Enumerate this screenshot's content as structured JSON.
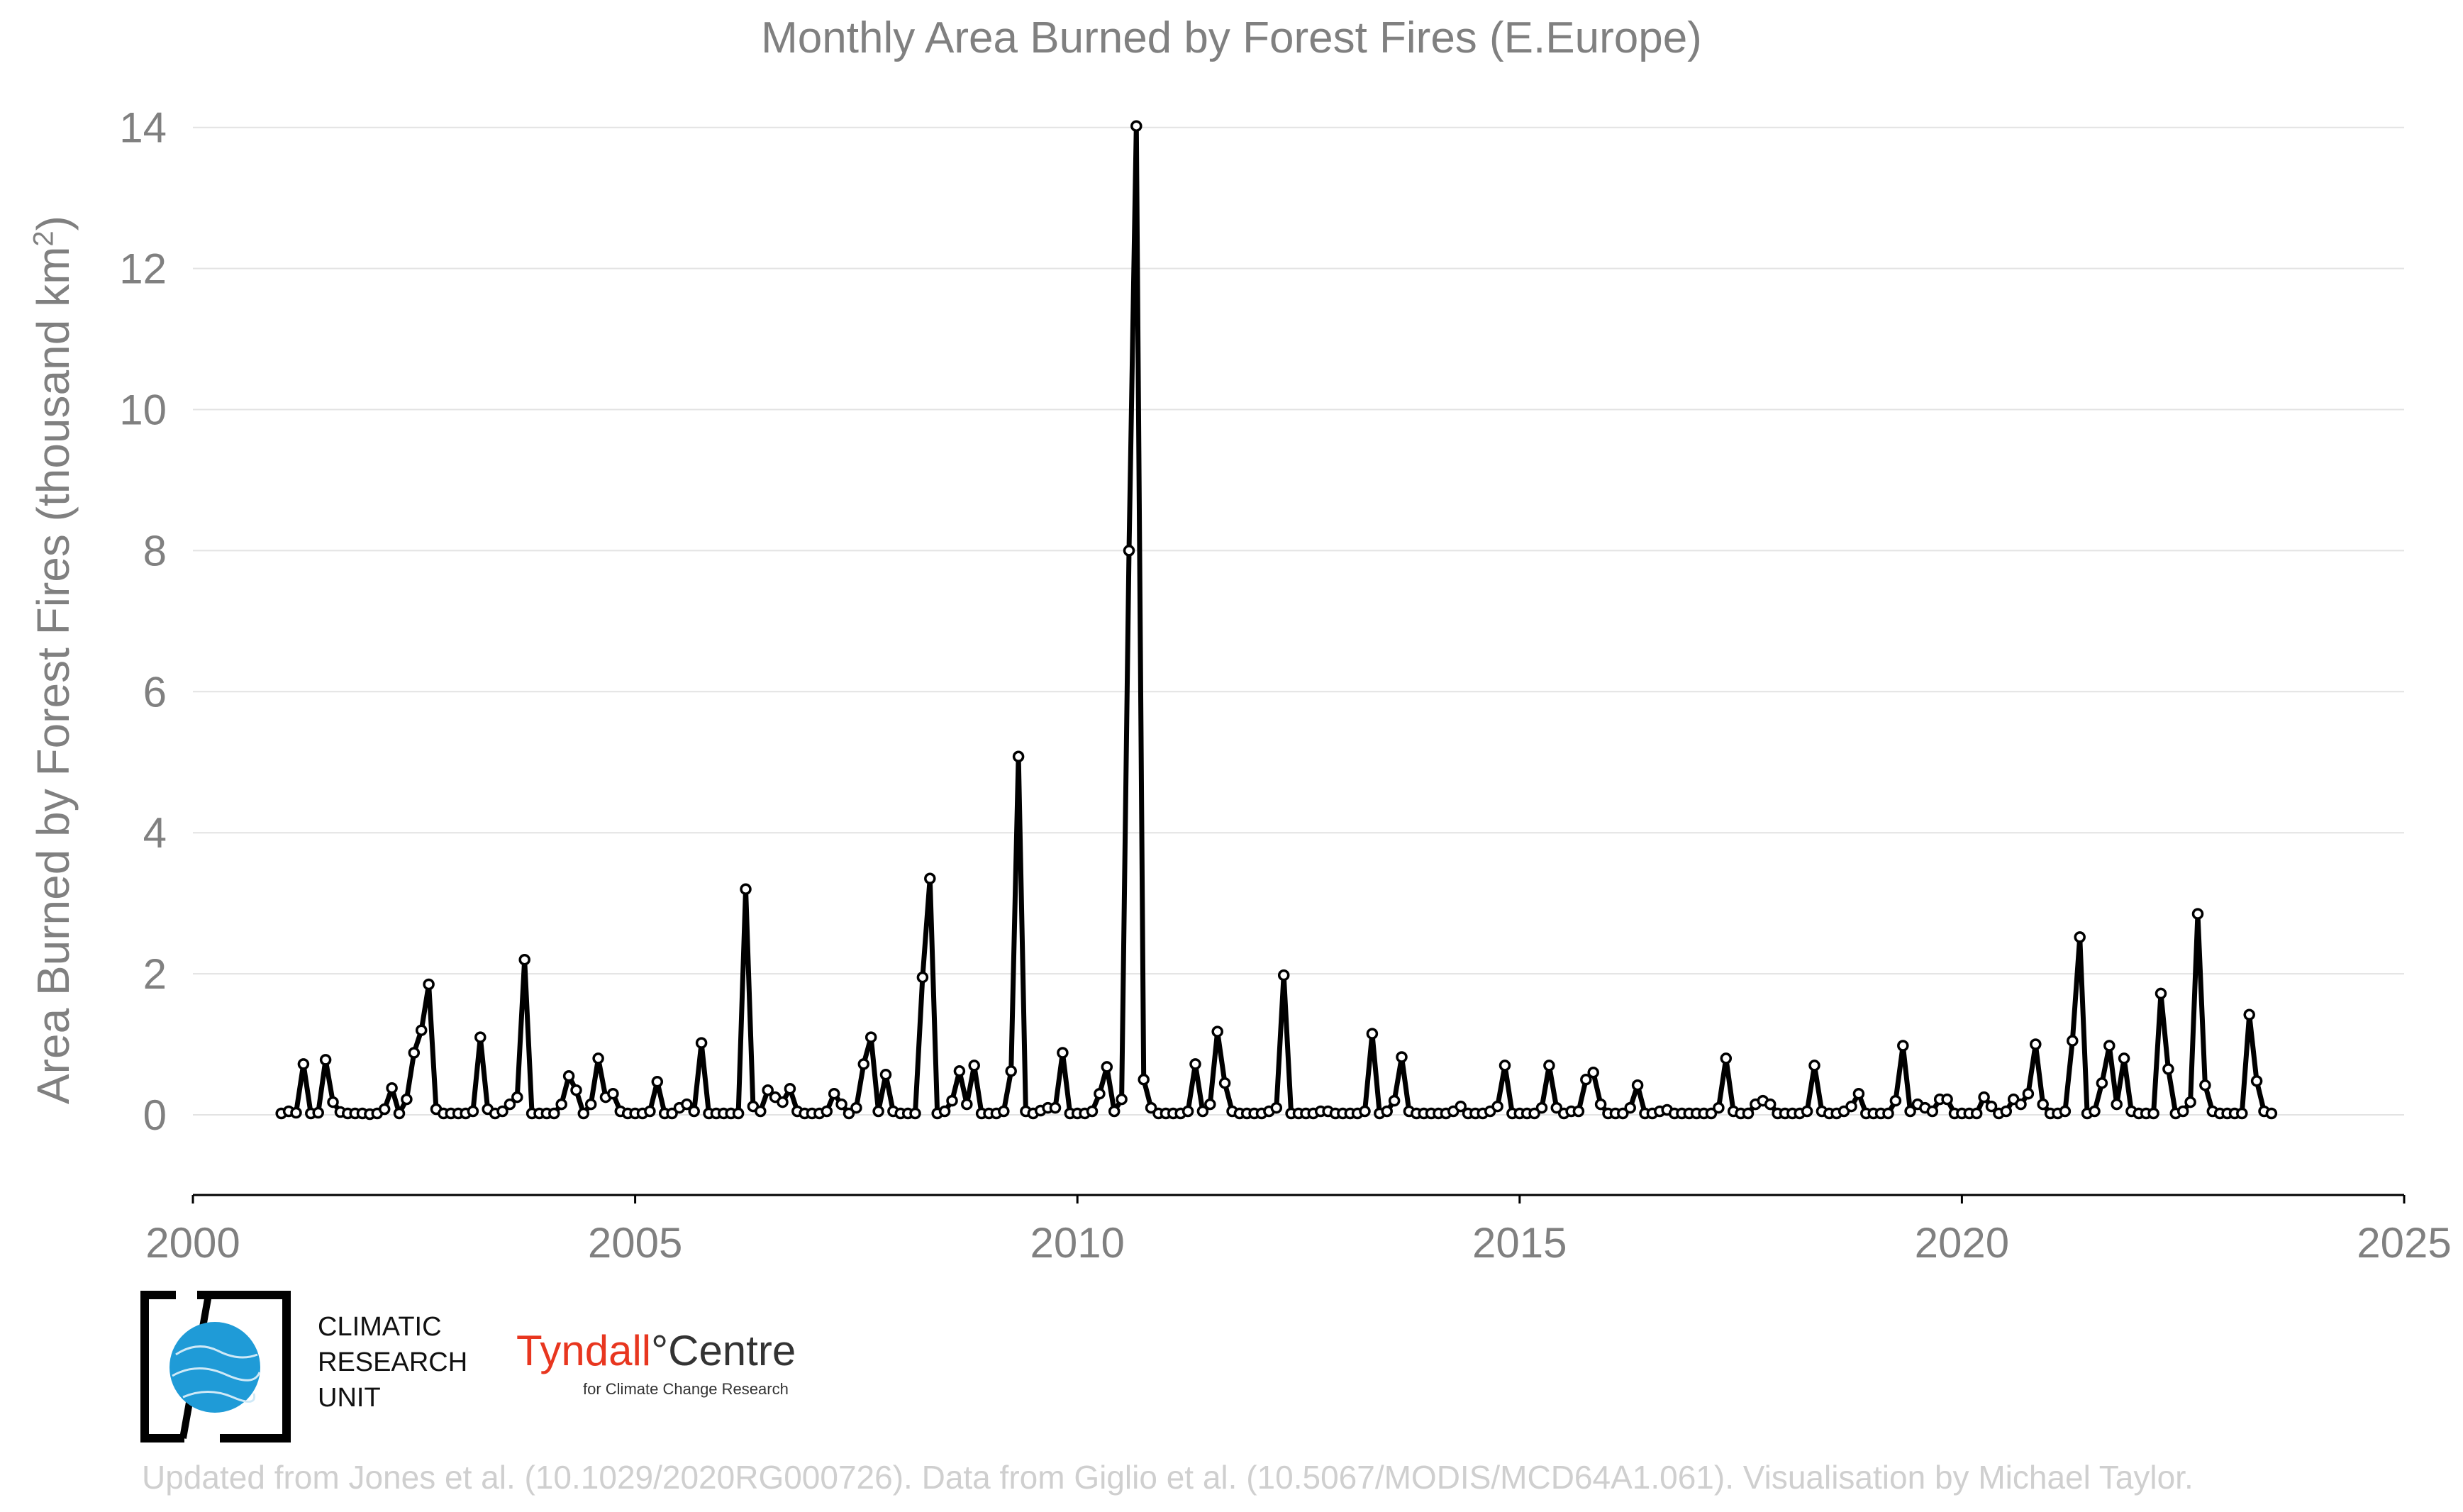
{
  "chart_data": {
    "type": "line",
    "title": "Monthly Area Burned by Forest Fires (E.Europe)",
    "ylabel_main": "Area Burned by Forest Fires (thousand km",
    "ylabel_sup": "2",
    "ylabel_close": ")",
    "xlabel": "",
    "xlim": [
      2000,
      2025
    ],
    "ylim": [
      -1.1,
      14.2
    ],
    "x_ticks": [
      2000,
      2005,
      2010,
      2015,
      2020,
      2025
    ],
    "y_ticks": [
      0,
      2,
      4,
      6,
      8,
      10,
      12,
      14
    ],
    "grid": "horizontal",
    "line_color": "#000000",
    "marker_fill": "#ffffff",
    "x_start": "2001-01",
    "series": [
      {
        "values": [
          0.02,
          0.05,
          0.03,
          0.72,
          0.02,
          0.03,
          0.78,
          0.18,
          0.04,
          0.02,
          0.02,
          0.02,
          0.01,
          0.02,
          0.08,
          0.38,
          0.02,
          0.22,
          0.88,
          1.2,
          1.85,
          0.08,
          0.02,
          0.02,
          0.02,
          0.02,
          0.05,
          1.1,
          0.08,
          0.02,
          0.05,
          0.15,
          0.25,
          2.2,
          0.02,
          0.02,
          0.02,
          0.02,
          0.15,
          0.55,
          0.35,
          0.02,
          0.15,
          0.8,
          0.25,
          0.3,
          0.05,
          0.02,
          0.02,
          0.02,
          0.05,
          0.47,
          0.02,
          0.02,
          0.1,
          0.15,
          0.05,
          1.02,
          0.02,
          0.02,
          0.02,
          0.02,
          0.02,
          3.2,
          0.12,
          0.05,
          0.35,
          0.25,
          0.18,
          0.37,
          0.05,
          0.02,
          0.02,
          0.02,
          0.05,
          0.3,
          0.15,
          0.02,
          0.1,
          0.72,
          1.1,
          0.05,
          0.57,
          0.05,
          0.02,
          0.02,
          0.02,
          1.95,
          3.35,
          0.02,
          0.05,
          0.2,
          0.62,
          0.15,
          0.7,
          0.02,
          0.02,
          0.02,
          0.05,
          0.62,
          5.08,
          0.05,
          0.02,
          0.06,
          0.1,
          0.1,
          0.88,
          0.02,
          0.02,
          0.02,
          0.05,
          0.3,
          0.68,
          0.05,
          0.22,
          8.0,
          14.02,
          0.5,
          0.1,
          0.02,
          0.02,
          0.02,
          0.02,
          0.05,
          0.72,
          0.05,
          0.15,
          1.18,
          0.45,
          0.05,
          0.02,
          0.02,
          0.02,
          0.02,
          0.05,
          0.1,
          1.98,
          0.02,
          0.02,
          0.02,
          0.02,
          0.05,
          0.05,
          0.02,
          0.02,
          0.02,
          0.02,
          0.05,
          1.15,
          0.02,
          0.05,
          0.2,
          0.82,
          0.05,
          0.02,
          0.02,
          0.02,
          0.02,
          0.02,
          0.05,
          0.12,
          0.02,
          0.02,
          0.02,
          0.05,
          0.12,
          0.7,
          0.02,
          0.02,
          0.02,
          0.02,
          0.1,
          0.7,
          0.1,
          0.02,
          0.05,
          0.05,
          0.5,
          0.6,
          0.15,
          0.02,
          0.02,
          0.02,
          0.1,
          0.42,
          0.02,
          0.02,
          0.05,
          0.07,
          0.02,
          0.02,
          0.02,
          0.02,
          0.02,
          0.02,
          0.1,
          0.8,
          0.05,
          0.02,
          0.02,
          0.15,
          0.2,
          0.15,
          0.02,
          0.02,
          0.02,
          0.02,
          0.05,
          0.7,
          0.05,
          0.02,
          0.02,
          0.05,
          0.12,
          0.3,
          0.02,
          0.02,
          0.02,
          0.02,
          0.2,
          0.98,
          0.05,
          0.15,
          0.1,
          0.05,
          0.22,
          0.22,
          0.02,
          0.02,
          0.02,
          0.02,
          0.25,
          0.12,
          0.02,
          0.05,
          0.22,
          0.15,
          0.3,
          1.0,
          0.15,
          0.02,
          0.02,
          0.05,
          1.05,
          2.52,
          0.02,
          0.05,
          0.45,
          0.98,
          0.15,
          0.8,
          0.05,
          0.02,
          0.02,
          0.02,
          1.72,
          0.65,
          0.02,
          0.05,
          0.18,
          2.85,
          0.42,
          0.05,
          0.02,
          0.02,
          0.02,
          0.02,
          1.42,
          0.48,
          0.05,
          0.02
        ]
      }
    ]
  },
  "logos": {
    "cru_line1": "CLIMATIC",
    "cru_line2": "RESEARCH",
    "cru_line3": "UNIT",
    "tyndall_name": "Tyndall",
    "tyndall_degree": "°",
    "tyndall_centre": "Centre",
    "tyndall_sub": "for Climate Change Research",
    "globe_color": "#1f9bd7",
    "tyndall_color": "#e8361f"
  },
  "footer": "Updated from Jones et al. (10.1029/2020RG000726). Data from Giglio et al. (10.5067/MODIS/MCD64A1.061). Visualisation by Michael Taylor."
}
